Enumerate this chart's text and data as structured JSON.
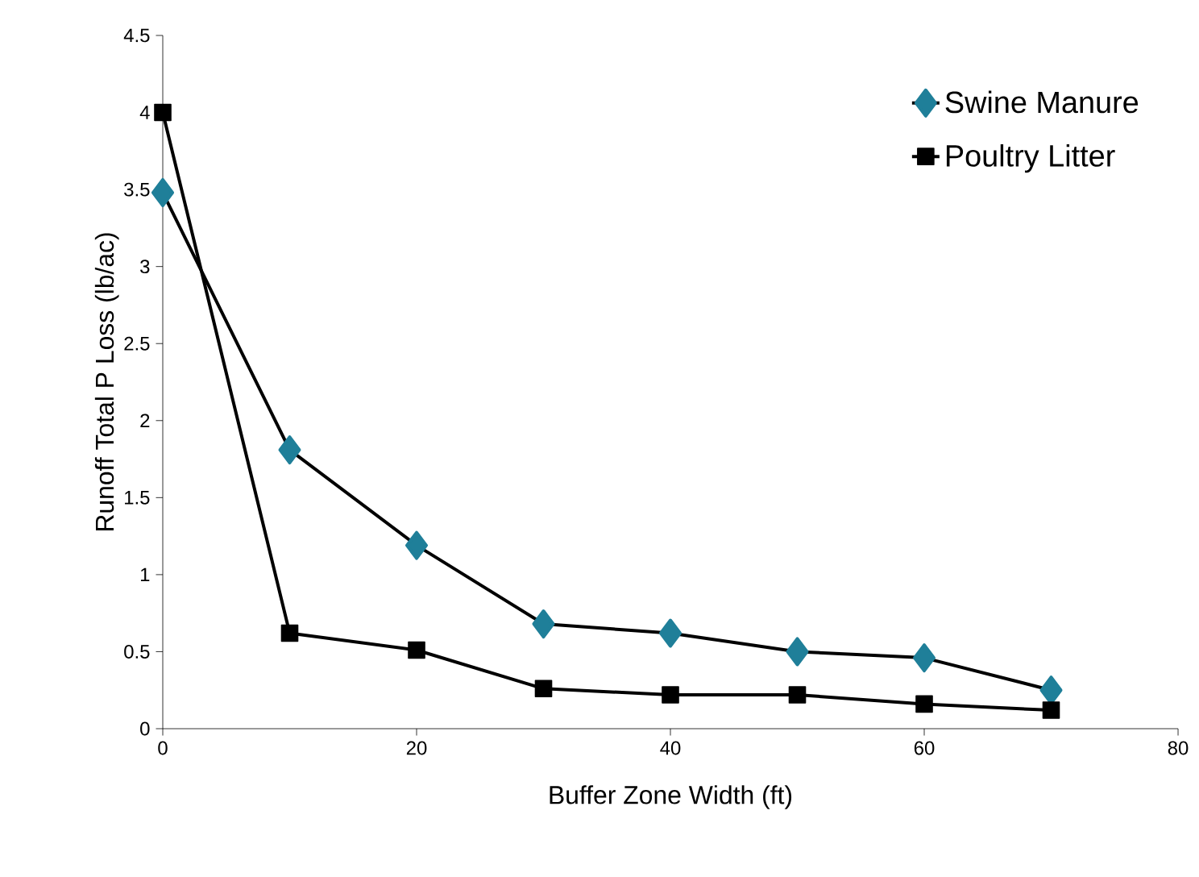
{
  "chart_data": {
    "type": "line",
    "xlabel": "Buffer Zone Width (ft)",
    "ylabel": "Runoff Total P Loss (lb/ac)",
    "x": [
      0,
      10,
      20,
      30,
      40,
      50,
      60,
      70
    ],
    "series": [
      {
        "name": "Swine Manure",
        "color": "#1f7f99",
        "marker": "diamond",
        "values": [
          3.48,
          1.81,
          1.19,
          0.68,
          0.62,
          0.5,
          0.46,
          0.25
        ]
      },
      {
        "name": "Poultry Litter",
        "color": "#000000",
        "marker": "square",
        "values": [
          4.0,
          0.62,
          0.51,
          0.26,
          0.22,
          0.22,
          0.16,
          0.12
        ]
      }
    ],
    "xlim": [
      0,
      80
    ],
    "xticks": [
      0,
      20,
      40,
      60,
      80
    ],
    "ylim": [
      0,
      4.5
    ],
    "yticks": [
      0,
      0.5,
      1,
      1.5,
      2,
      2.5,
      3,
      3.5,
      4,
      4.5
    ],
    "legend": "top right",
    "grid": false,
    "line_style": "solid"
  }
}
